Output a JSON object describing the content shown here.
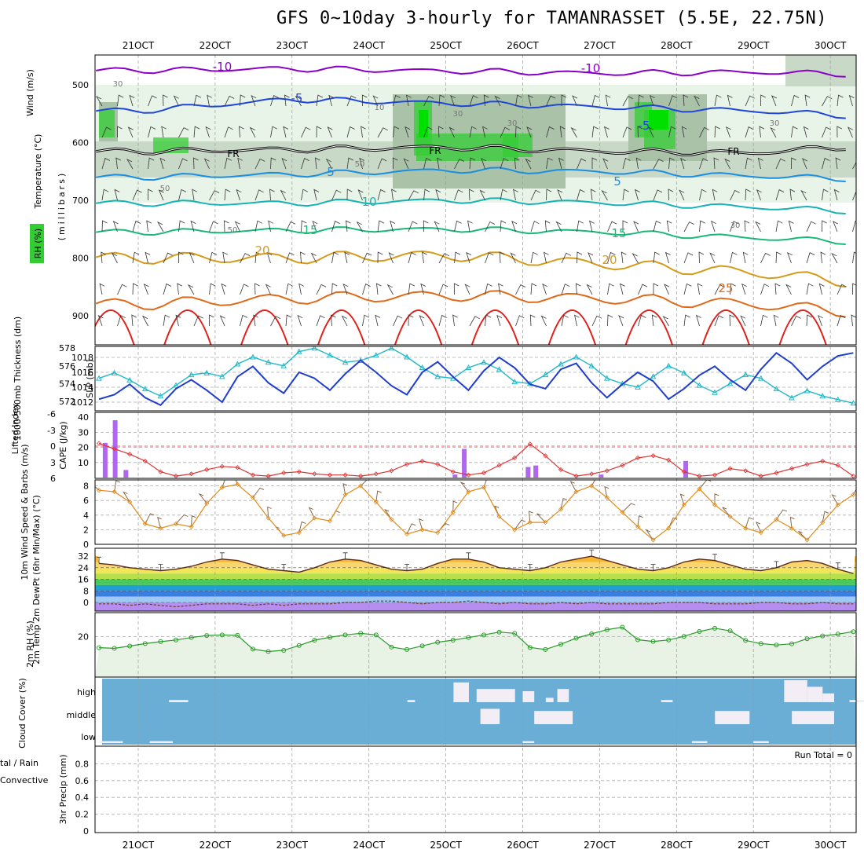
{
  "title": "GFS 0~10day 3-hourly for TAMANRASSET (5.5E, 22.75N)",
  "colors": {
    "temp_purple": "#8a00c8",
    "temp_blue": "#1f46d8",
    "temp_lightblue": "#1c8ee0",
    "temp_cyan": "#17b3b3",
    "temp_green": "#1ab878",
    "temp_gold": "#d69a1a",
    "temp_orange": "#e06a1a",
    "temp_red": "#e0201a",
    "rh_green": "#33cc33",
    "slp_blue": "#1f3ecc",
    "thickness_cyan": "#22b8c8",
    "cape_purple": "#b066ee",
    "li_red": "#dd3333",
    "wind_orange": "#e08a1a",
    "rh2m_green": "#2a9a2a",
    "cloud_blue": "#6aaed6",
    "cloud_white": "#f3eef6"
  },
  "chart_data": [
    {
      "type": "line",
      "panel": "upper-air",
      "title": "GFS 0~10day 3-hourly for TAMANRASSET (5.5E, 22.75N)",
      "x_ticks": [
        "21OCT",
        "22OCT",
        "23OCT",
        "24OCT",
        "25OCT",
        "26OCT",
        "27OCT",
        "28OCT",
        "29OCT",
        "30OCT"
      ],
      "ylabel": "(millibars)",
      "y_ticks": [
        500,
        600,
        700,
        800,
        900
      ],
      "ylim": [
        950,
        450
      ],
      "side_labels": [
        "Wind (m/s)",
        "Temperature (°C)",
        "RH (%)"
      ],
      "isotherm_labels": [
        "-10",
        "-10",
        "-5",
        "-5",
        "FR",
        "FR",
        "FR",
        "5",
        "5",
        "10",
        "15",
        "15",
        "20",
        "20",
        "25"
      ],
      "rh_contour_labels": [
        "30",
        "10",
        "50",
        "30",
        "50",
        "30",
        "30",
        "50",
        "30"
      ],
      "series": [
        {
          "name": "-10",
          "x": [
            0,
            2,
            4,
            6,
            8,
            10
          ],
          "y": [
            475,
            472,
            476,
            480,
            478,
            483
          ]
        },
        {
          "name": "-5",
          "x": [
            0,
            2,
            4,
            6,
            8,
            10
          ],
          "y": [
            545,
            525,
            532,
            538,
            545,
            558
          ]
        },
        {
          "name": "FR",
          "x": [
            0,
            2,
            4,
            6,
            8,
            10
          ],
          "y": [
            615,
            612,
            608,
            615,
            618,
            600
          ]
        },
        {
          "name": "5",
          "x": [
            0,
            2,
            4,
            6,
            8,
            10
          ],
          "y": [
            660,
            655,
            648,
            650,
            658,
            665
          ]
        },
        {
          "name": "10",
          "x": [
            0,
            2,
            4,
            6,
            8,
            10
          ],
          "y": [
            705,
            705,
            700,
            704,
            712,
            722
          ]
        },
        {
          "name": "15",
          "x": [
            0,
            2,
            4,
            6,
            8,
            10
          ],
          "y": [
            755,
            752,
            750,
            755,
            765,
            775
          ]
        },
        {
          "name": "20",
          "x": [
            0,
            2,
            4,
            6,
            8,
            10
          ],
          "y": [
            800,
            800,
            795,
            810,
            825,
            850
          ]
        },
        {
          "name": "25",
          "x": [
            0,
            2,
            4,
            6,
            8,
            10
          ],
          "y": [
            880,
            870,
            865,
            870,
            880,
            900
          ]
        }
      ]
    },
    {
      "type": "line",
      "panel": "slp-thickness",
      "ylabel_left": "1000-500mb Thickness (dm)",
      "ylabel_right": "SLP (mb)",
      "y_ticks_left": [
        572,
        574,
        576,
        578
      ],
      "y_ticks_right": [
        1012,
        1014,
        1016,
        1018
      ],
      "series": [
        {
          "name": "Thickness",
          "unit": "dm",
          "values": [
            574.6,
            575.2,
            574.4,
            573.4,
            572.6,
            573.8,
            575.0,
            575.2,
            574.8,
            576.2,
            577.0,
            576.4,
            576.0,
            577.6,
            578.0,
            577.2,
            576.4,
            576.6,
            577.2,
            578.0,
            577.0,
            575.8,
            574.8,
            574.6,
            575.8,
            576.4,
            575.6,
            574.2,
            574.0,
            575.0,
            576.2,
            577.0,
            576.0,
            574.6,
            574.0,
            573.6,
            574.8,
            576.0,
            575.2,
            573.8,
            573.0,
            574.0,
            575.0,
            574.6,
            573.4,
            572.4,
            573.2,
            572.6,
            572.2,
            571.8
          ]
        },
        {
          "name": "SLP",
          "unit": "mb",
          "values": [
            1012.4,
            1013.0,
            1014.4,
            1012.6,
            1011.6,
            1013.8,
            1015.0,
            1013.6,
            1012.0,
            1015.4,
            1016.8,
            1014.6,
            1013.2,
            1016.0,
            1015.2,
            1013.6,
            1015.8,
            1017.6,
            1016.0,
            1014.2,
            1013.0,
            1016.0,
            1017.4,
            1015.4,
            1013.6,
            1016.2,
            1018.0,
            1016.6,
            1014.4,
            1013.8,
            1016.4,
            1017.2,
            1014.6,
            1012.6,
            1014.4,
            1016.0,
            1014.8,
            1012.4,
            1013.8,
            1015.6,
            1016.8,
            1015.0,
            1013.6,
            1016.4,
            1018.6,
            1017.2,
            1015.0,
            1016.8,
            1018.2,
            1018.6
          ]
        }
      ]
    },
    {
      "type": "bar",
      "panel": "stability",
      "ylabel_left": "Lifted Index",
      "ylabel_right": "CAPE (J/kg)",
      "y_ticks_li": [
        "-6",
        "-3",
        "0",
        "3",
        "6"
      ],
      "y_ticks_cape": [
        10,
        20,
        30,
        40
      ],
      "cape_bars": [
        {
          "x": 0.05,
          "value": 23
        },
        {
          "x": 0.18,
          "value": 38
        },
        {
          "x": 0.32,
          "value": 5
        },
        {
          "x": 4.6,
          "value": 2
        },
        {
          "x": 4.72,
          "value": 19
        },
        {
          "x": 5.55,
          "value": 7
        },
        {
          "x": 5.65,
          "value": 8
        },
        {
          "x": 6.5,
          "value": 2
        },
        {
          "x": 7.6,
          "value": 11
        }
      ],
      "lifted_index": [
        -0.5,
        0.5,
        1.5,
        2.8,
        4.8,
        5.6,
        5.2,
        4.4,
        3.8,
        4.0,
        5.4,
        5.6,
        5.0,
        4.8,
        5.2,
        5.4,
        5.4,
        5.6,
        5.2,
        4.6,
        3.4,
        2.8,
        3.4,
        4.8,
        5.4,
        5.0,
        3.6,
        2.2,
        -0.4,
        1.8,
        4.4,
        5.6,
        5.2,
        4.6,
        3.6,
        2.2,
        1.8,
        2.6,
        4.8,
        5.6,
        5.4,
        4.2,
        4.6,
        5.6,
        5.0,
        4.2,
        3.4,
        2.8,
        3.6,
        5.6
      ]
    },
    {
      "type": "line",
      "panel": "10m-wind",
      "ylabel": "10m Wind Speed & Barbs (m/s)",
      "y_ticks": [
        0,
        2,
        4,
        6,
        8
      ],
      "series": [
        {
          "name": "10m Wind Speed",
          "values": [
            7.4,
            7.2,
            5.8,
            2.8,
            2.2,
            2.8,
            2.4,
            5.6,
            7.8,
            8.2,
            6.4,
            3.6,
            1.2,
            1.6,
            3.6,
            3.2,
            6.8,
            8.0,
            5.8,
            3.4,
            1.4,
            2.0,
            1.6,
            4.4,
            7.2,
            7.8,
            3.8,
            2.0,
            3.0,
            3.0,
            4.8,
            7.2,
            8.0,
            6.4,
            4.4,
            2.4,
            0.6,
            2.2,
            5.4,
            7.6,
            5.4,
            3.8,
            2.2,
            1.6,
            3.4,
            2.2,
            0.6,
            3.0,
            5.4,
            6.8
          ]
        }
      ]
    },
    {
      "type": "area",
      "panel": "2m-temperature",
      "ylabel": "2m Temp 2m DewPt (6hr Min/Max) (°C)",
      "y_ticks": [
        0,
        8,
        16,
        24,
        32
      ],
      "series": [
        {
          "name": "2m Temp",
          "values": [
            27,
            26,
            24,
            23,
            22,
            23,
            25,
            28,
            30,
            29,
            26,
            23,
            22,
            21,
            24,
            28,
            30,
            29,
            26,
            23,
            22,
            23,
            27,
            30,
            30,
            28,
            24,
            23,
            22,
            24,
            28,
            30,
            32,
            29,
            26,
            23,
            22,
            24,
            28,
            30,
            29,
            26,
            23,
            22,
            24,
            28,
            29,
            27,
            23,
            20
          ]
        },
        {
          "name": "2m DewPt",
          "values": [
            -1,
            -1,
            -2,
            -1,
            -2,
            -3,
            -2,
            -1,
            -1,
            -1,
            -2,
            -1,
            -2,
            -1,
            -1,
            -1,
            0,
            0,
            1,
            1,
            0,
            -1,
            0,
            0,
            1,
            0,
            -1,
            0,
            -1,
            -1,
            0,
            -1,
            0,
            -1,
            -1,
            -1,
            -1,
            0,
            0,
            0,
            -1,
            -1,
            -1,
            0,
            0,
            -1,
            -1,
            0,
            -1,
            -1
          ]
        }
      ]
    },
    {
      "type": "area",
      "panel": "2m-rh",
      "ylabel": "2m RH (%)",
      "y_ticks": [
        20
      ],
      "series": [
        {
          "name": "2m RH",
          "values": [
            14.5,
            14.2,
            15.3,
            16.5,
            17.5,
            18.3,
            19.5,
            20.5,
            20.8,
            20.6,
            13.8,
            12.6,
            13.2,
            15.6,
            18.2,
            19.6,
            20.8,
            21.6,
            20.8,
            14.8,
            13.6,
            15.4,
            17.2,
            18.2,
            19.5,
            20.8,
            22.2,
            21.6,
            14.6,
            13.6,
            16.2,
            19.2,
            21.3,
            23.4,
            24.6,
            18.4,
            17.6,
            18.3,
            20.1,
            22.5,
            24.1,
            22.8,
            18.1,
            16.5,
            15.8,
            16.4,
            18.9,
            20.3,
            21.2,
            22.4
          ]
        }
      ]
    },
    {
      "type": "heatmap",
      "panel": "cloud-cover",
      "ylabel": "Cloud Cover (%)",
      "levels": [
        "high",
        "middle",
        "low"
      ],
      "patches": [
        {
          "level": "high",
          "x0": 0.4,
          "x1": 0.65,
          "cover": 0.1
        },
        {
          "level": "high",
          "x0": 3.5,
          "x1": 3.6,
          "cover": 0.1
        },
        {
          "level": "high",
          "x0": 4.1,
          "x1": 4.3,
          "cover": 0.9
        },
        {
          "level": "high",
          "x0": 4.4,
          "x1": 4.9,
          "cover": 0.6
        },
        {
          "level": "high",
          "x0": 5.0,
          "x1": 5.15,
          "cover": 0.5
        },
        {
          "level": "high",
          "x0": 5.3,
          "x1": 5.4,
          "cover": 0.2
        },
        {
          "level": "high",
          "x0": 5.45,
          "x1": 5.6,
          "cover": 0.6
        },
        {
          "level": "high",
          "x0": 6.8,
          "x1": 6.95,
          "cover": 0.1
        },
        {
          "level": "high",
          "x0": 8.4,
          "x1": 8.7,
          "cover": 1.0
        },
        {
          "level": "high",
          "x0": 8.7,
          "x1": 8.9,
          "cover": 0.7
        },
        {
          "level": "high",
          "x0": 8.9,
          "x1": 9.05,
          "cover": 0.4
        },
        {
          "level": "high",
          "x0": 9.25,
          "x1": 9.45,
          "cover": 0.1
        },
        {
          "level": "middle",
          "x0": 4.45,
          "x1": 4.7,
          "cover": 0.7
        },
        {
          "level": "middle",
          "x0": 5.15,
          "x1": 5.65,
          "cover": 0.6
        },
        {
          "level": "middle",
          "x0": 7.5,
          "x1": 7.95,
          "cover": 0.6
        },
        {
          "level": "middle",
          "x0": 8.5,
          "x1": 9.05,
          "cover": 0.6
        },
        {
          "level": "low",
          "x0": -0.5,
          "x1": -0.2,
          "cover": 0.1
        },
        {
          "level": "low",
          "x0": 0.15,
          "x1": 0.45,
          "cover": 0.1
        },
        {
          "level": "low",
          "x0": 5.0,
          "x1": 5.15,
          "cover": 0.1
        },
        {
          "level": "low",
          "x0": 7.2,
          "x1": 7.4,
          "cover": 0.1
        },
        {
          "level": "low",
          "x0": 8.0,
          "x1": 8.2,
          "cover": 0.1
        }
      ]
    },
    {
      "type": "bar",
      "panel": "precipitation",
      "ylabel": "3hr Precip (mm)",
      "side_labels": [
        "tal / Rain",
        "Convective"
      ],
      "y_ticks": [
        "0",
        "0.2",
        "0.4",
        "0.6",
        "0.8"
      ],
      "run_total_label": "Run Total = 0",
      "values": []
    }
  ]
}
